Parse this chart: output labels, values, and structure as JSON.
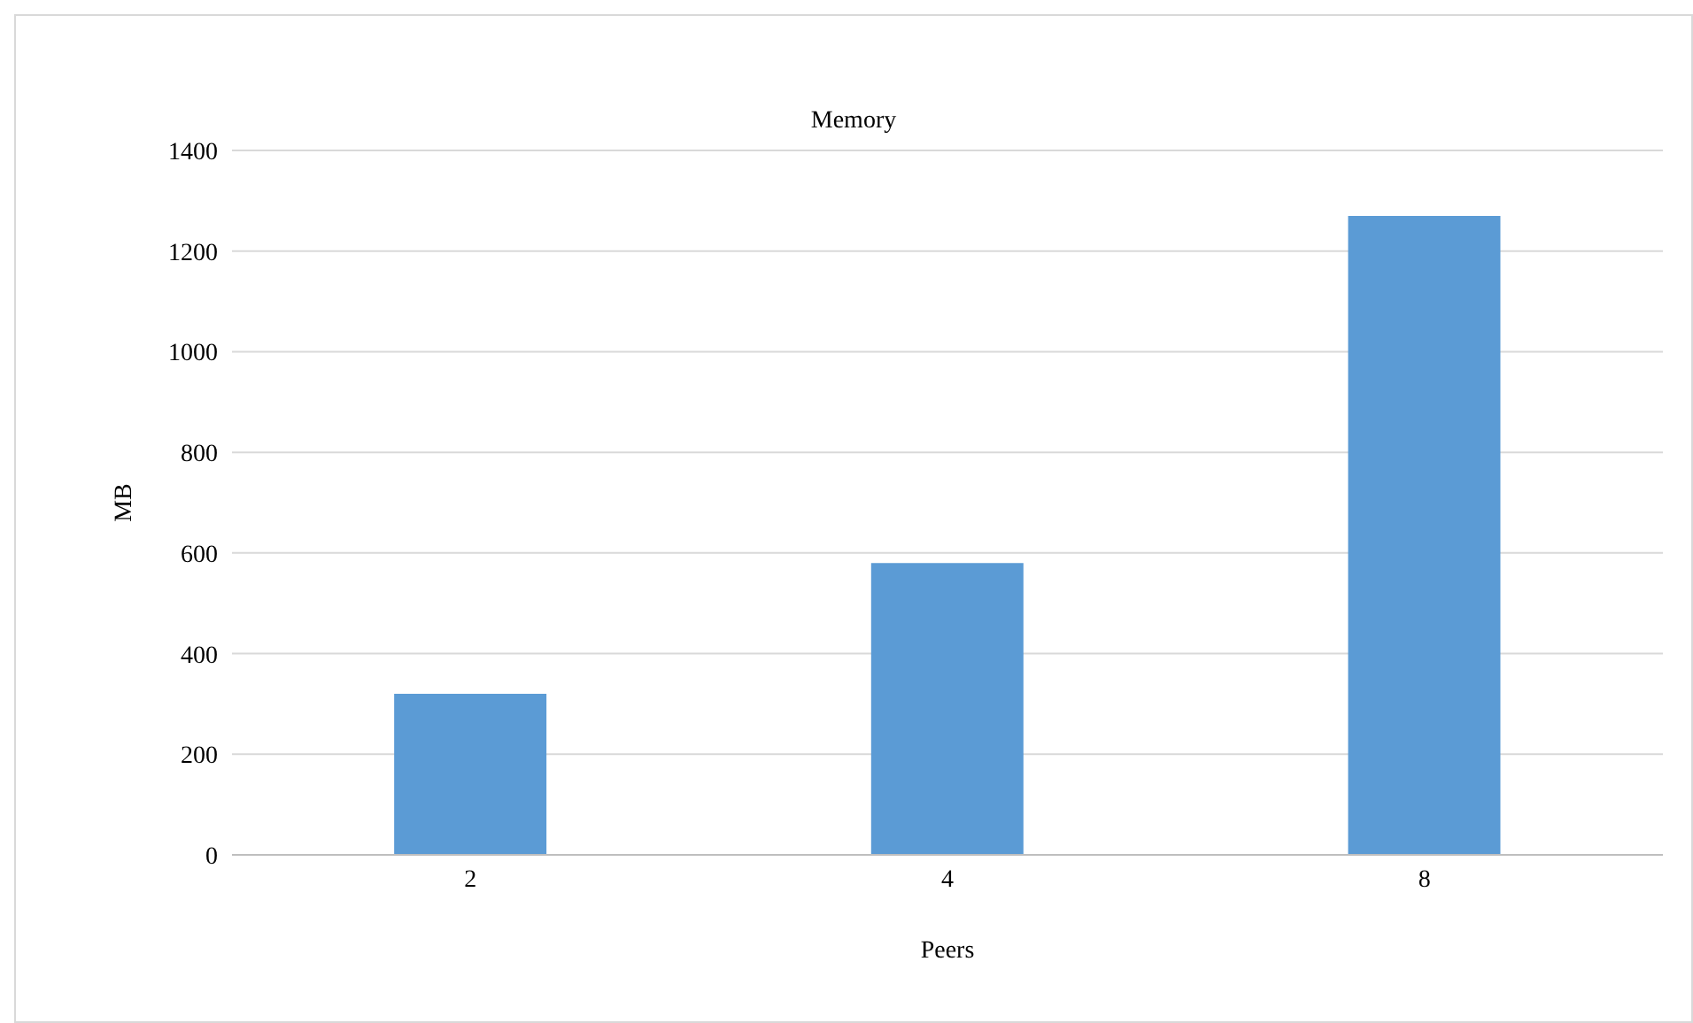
{
  "chart_data": {
    "type": "bar",
    "title": "Memory",
    "xlabel": "Peers",
    "ylabel": "MB",
    "categories": [
      "2",
      "4",
      "8"
    ],
    "values": [
      320,
      580,
      1270
    ],
    "color": "#5b9bd5",
    "ylim": [
      0,
      1400
    ],
    "yticks": [
      0,
      200,
      400,
      600,
      800,
      1000,
      1200,
      1400
    ],
    "grid": "y",
    "legend": false
  }
}
